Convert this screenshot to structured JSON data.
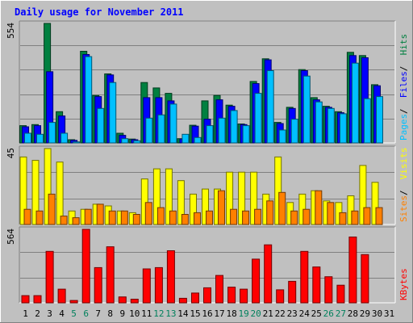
{
  "chart_data": {
    "type": "bar",
    "title": "Daily usage for November 2011",
    "categories": [
      "1",
      "2",
      "3",
      "4",
      "5",
      "6",
      "7",
      "8",
      "9",
      "10",
      "11",
      "12",
      "13",
      "14",
      "15",
      "16",
      "17",
      "18",
      "19",
      "20",
      "21",
      "22",
      "23",
      "24",
      "25",
      "26",
      "27",
      "28",
      "29",
      "30",
      "31"
    ],
    "weekend_days": [
      "5",
      "6",
      "12",
      "13",
      "19",
      "20",
      "26",
      "27"
    ],
    "panels": [
      {
        "id": "pages-files-hits",
        "y_max_label": "554",
        "ylim": [
          0,
          554
        ],
        "right_labels": [
          {
            "text": "Pages",
            "color": "#00c0ff"
          },
          {
            "text": "Files",
            "color": "#0000ff"
          },
          {
            "text": "Hits",
            "color": "#008040"
          }
        ],
        "series": [
          {
            "name": "Hits",
            "color": "#008040",
            "values": [
              80,
              85,
              554,
              145,
              15,
              425,
              220,
              320,
              45,
              18,
              280,
              255,
              230,
              20,
              82,
              195,
              220,
              175,
              88,
              285,
              390,
              95,
              165,
              340,
              210,
              170,
              145,
              420,
              405,
              270,
              0
            ]
          },
          {
            "name": "Files",
            "color": "#0000ff",
            "values": [
              75,
              80,
              330,
              125,
              12,
              410,
              215,
              315,
              35,
              15,
              210,
              210,
              195,
              18,
              78,
              110,
              200,
              170,
              85,
              275,
              385,
              90,
              160,
              335,
              200,
              165,
              140,
              405,
              395,
              265,
              0
            ]
          },
          {
            "name": "Pages",
            "color": "#00c0ff",
            "values": [
              45,
              40,
              95,
              45,
              5,
              400,
              160,
              280,
              20,
              10,
              115,
              130,
              180,
              40,
              25,
              80,
              115,
              150,
              80,
              230,
              335,
              60,
              110,
              310,
              190,
              160,
              135,
              370,
              205,
              215,
              0
            ]
          }
        ]
      },
      {
        "id": "sites-visits",
        "y_max_label": "45",
        "ylim": [
          0,
          45
        ],
        "right_labels": [
          {
            "text": "Sites",
            "color": "#ff8000"
          },
          {
            "text": "Visits",
            "color": "#ffff00"
          }
        ],
        "series": [
          {
            "name": "Visits",
            "color": "#ffff00",
            "values": [
              40,
              38,
              45,
              37,
              8,
              9,
              12,
              11,
              8,
              7,
              27,
              33,
              33,
              26,
              18,
              21,
              21,
              31,
              31,
              31,
              18,
              40,
              13,
              18,
              20,
              14,
              13,
              17,
              35,
              25,
              0
            ]
          },
          {
            "name": "Sites",
            "color": "#ff8000",
            "values": [
              9,
              8,
              18,
              5,
              4,
              9,
              12,
              8,
              8,
              6,
              13,
              10,
              8,
              6,
              7,
              8,
              20,
              9,
              8,
              9,
              14,
              19,
              8,
              9,
              20,
              13,
              7,
              8,
              10,
              10,
              0
            ]
          }
        ]
      },
      {
        "id": "kbytes",
        "y_max_label": "564",
        "ylim": [
          0,
          564
        ],
        "right_labels": [
          {
            "text": "KBytes",
            "color": "#ff0000"
          }
        ],
        "series": [
          {
            "name": "KBytes",
            "color": "#ff0000",
            "values": [
              55,
              55,
              395,
              105,
              18,
              564,
              270,
              430,
              45,
              28,
              260,
              270,
              400,
              35,
              75,
              115,
              210,
              120,
              105,
              335,
              445,
              100,
              165,
              395,
              275,
              200,
              135,
              505,
              370,
              0,
              0
            ]
          }
        ]
      }
    ],
    "grid": true
  }
}
